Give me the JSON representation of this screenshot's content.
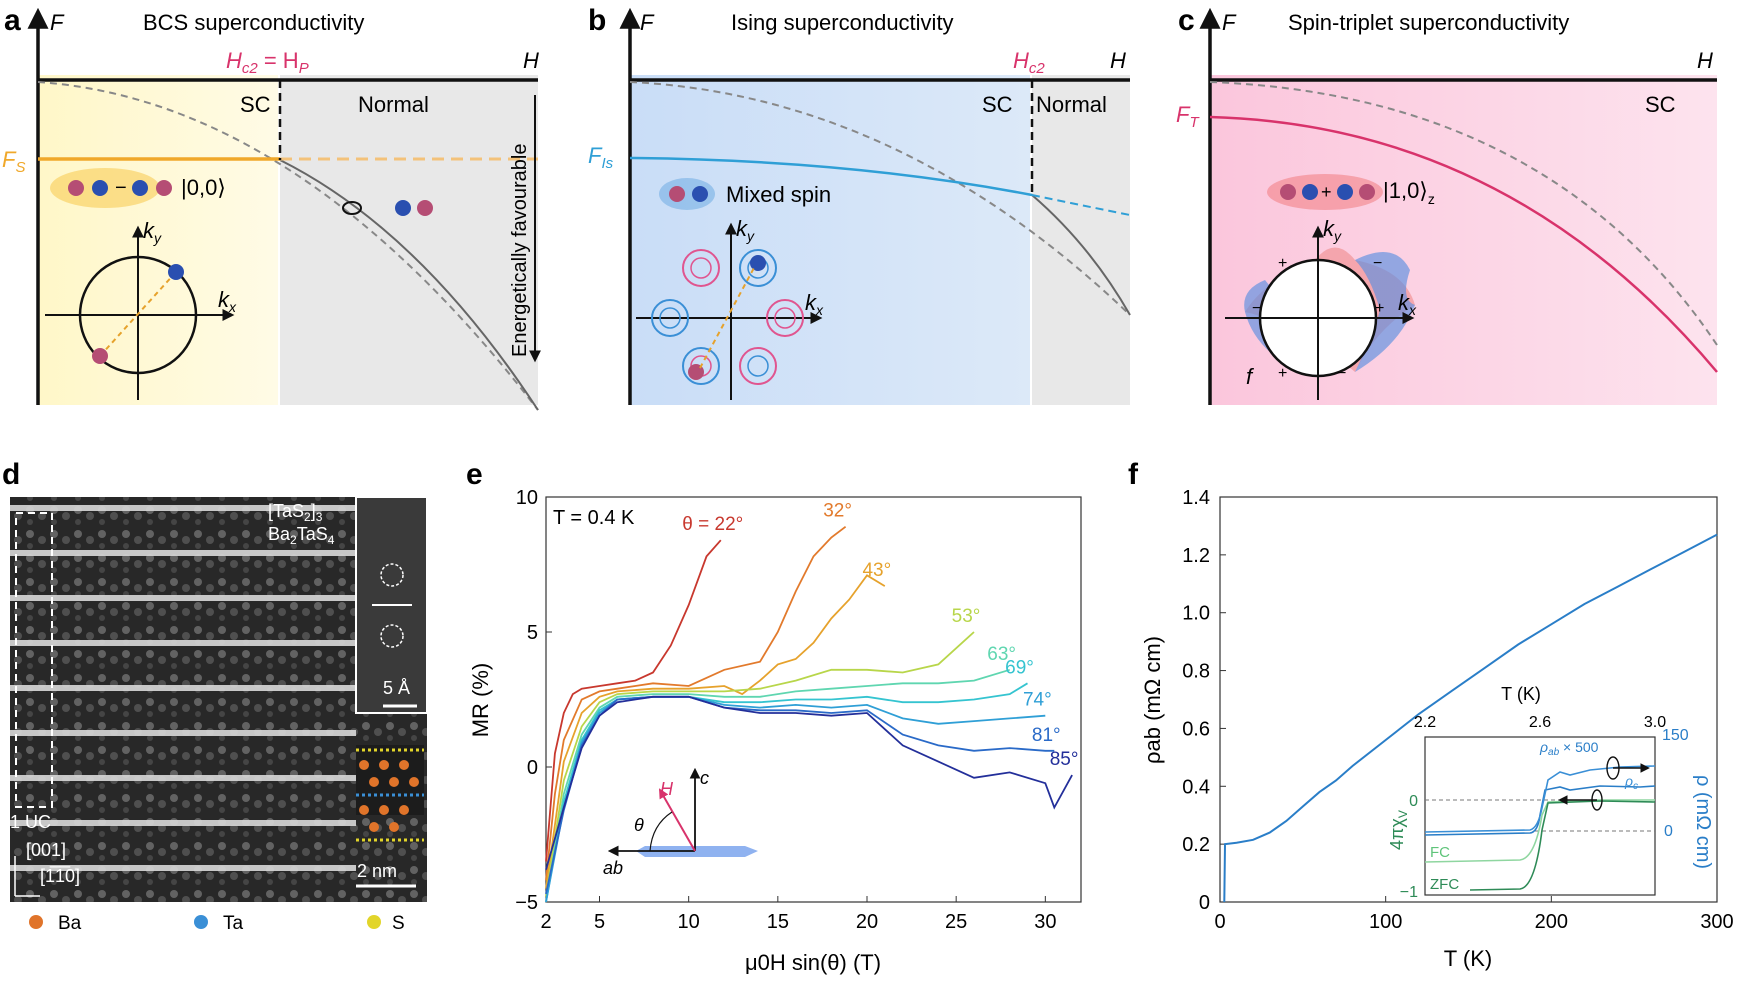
{
  "panel_a": {
    "letter": "a",
    "title": "BCS superconductivity",
    "axis_f": "F",
    "axis_h": "H",
    "hc2_label": "H",
    "hc2_sub": "c2",
    "hp_eq": " = H",
    "hp_sub": "P",
    "sc_label": "SC",
    "normal_label": "Normal",
    "fs_label": "F",
    "fs_sub": "S",
    "state_label": "|0,0⟩",
    "energetic_label": "Energetically favourable",
    "kx": "k",
    "kx_sub": "x",
    "ky": "k",
    "ky_sub": "y"
  },
  "panel_b": {
    "letter": "b",
    "title": "Ising superconductivity",
    "axis_f": "F",
    "axis_h": "H",
    "hc2_label": "H",
    "hc2_sub": "c2",
    "sc_label": "SC",
    "normal_label": "Normal",
    "fis_label": "F",
    "fis_sub": "Is",
    "mixed_label": "Mixed spin",
    "kx": "k",
    "kx_sub": "x",
    "ky": "k",
    "ky_sub": "y"
  },
  "panel_c": {
    "letter": "c",
    "title": "Spin-triplet superconductivity",
    "axis_f": "F",
    "axis_h": "H",
    "sc_label": "SC",
    "ft_label": "F",
    "ft_sub": "T",
    "state_label": "|1,0⟩",
    "state_sub": "z",
    "f_label": "f",
    "plus": "+",
    "minus": "−",
    "kx": "k",
    "kx_sub": "x",
    "ky": "k",
    "ky_sub": "y"
  },
  "panel_d": {
    "letter": "d",
    "layer1": "[TaS",
    "layer1_sub": "2",
    "layer1_end": "]",
    "layer1_sub2": "3",
    "layer2": "Ba",
    "layer2_sub": "2",
    "layer2_mid": "TaS",
    "layer2_sub2": "4",
    "uc_label": "1 UC",
    "dir1": "[001]",
    "dir2": "[1̅1̅0]",
    "scale_small": "5 Å",
    "scale_big": "2 nm",
    "legend": [
      {
        "name": "Ba",
        "color": "#e0742a"
      },
      {
        "name": "Ta",
        "color": "#3a8fd6"
      },
      {
        "name": "S",
        "color": "#e2d52a"
      }
    ]
  },
  "panel_e": {
    "letter": "e",
    "temp_label": "T = 0.4 K",
    "h_label": "H",
    "c_label": "c",
    "ab_label": "ab",
    "theta_label": "θ"
  },
  "panel_f": {
    "letter": "f",
    "inset_t_label": "T (K)",
    "inset_ticks_x": [
      "2.2",
      "2.6",
      "3.0"
    ],
    "inset_right_ticks": [
      "150",
      "0"
    ],
    "inset_left_ticks": [
      "0",
      "−1"
    ],
    "inset_left_label": "4πχ",
    "inset_left_sub": "V",
    "inset_right_label": "ρ (mΩ cm)",
    "rho_ab_label": "ρ",
    "rho_ab_sub": "ab",
    "rho_ab_mult": " × 500",
    "rho_c_label": "ρ",
    "rho_c_sub": "c",
    "fc_label": "FC",
    "zfc_label": "ZFC"
  },
  "chart_data": [
    {
      "id": "e",
      "type": "line",
      "xlabel": "μ0H sin(θ) (T)",
      "ylabel": "MR (%)",
      "xlim": [
        2,
        32
      ],
      "ylim": [
        -5,
        10
      ],
      "x_ticks": [
        2,
        5,
        10,
        15,
        20,
        25,
        30
      ],
      "y_ticks": [
        -5,
        0,
        5,
        10
      ],
      "series": [
        {
          "name": "θ = 22°",
          "color": "#c8382e",
          "x": [
            2,
            2.5,
            3,
            3.5,
            4,
            5,
            6,
            7,
            8,
            9,
            10,
            11,
            11.8
          ],
          "y": [
            -3.5,
            0.5,
            2.0,
            2.7,
            2.9,
            3.0,
            3.1,
            3.2,
            3.5,
            4.5,
            6.0,
            7.8,
            8.4
          ]
        },
        {
          "name": "32°",
          "color": "#e27a2c",
          "x": [
            2,
            2.5,
            3,
            4,
            5,
            6,
            7,
            8,
            10,
            12,
            14,
            15,
            16,
            17,
            18,
            18.8
          ],
          "y": [
            -4.2,
            -1.0,
            1.0,
            2.5,
            2.8,
            2.9,
            3.0,
            3.1,
            3.0,
            3.6,
            3.9,
            5.0,
            6.5,
            7.8,
            8.5,
            8.9
          ]
        },
        {
          "name": "43°",
          "color": "#e6a22c",
          "x": [
            2,
            3,
            4,
            5,
            6,
            8,
            10,
            12,
            13,
            14,
            15,
            16,
            17,
            18,
            19,
            20,
            21
          ],
          "y": [
            -4.5,
            0.2,
            2.0,
            2.6,
            2.8,
            2.9,
            2.9,
            3.0,
            2.7,
            3.2,
            3.8,
            4.0,
            4.6,
            5.5,
            6.2,
            7.1,
            6.7
          ]
        },
        {
          "name": "53°",
          "color": "#b8d64a",
          "x": [
            2,
            3,
            4,
            5,
            6,
            8,
            10,
            12,
            14,
            16,
            18,
            20,
            22,
            24,
            26
          ],
          "y": [
            -4.8,
            -0.5,
            1.5,
            2.4,
            2.7,
            2.8,
            2.8,
            2.8,
            2.9,
            3.2,
            3.6,
            3.6,
            3.5,
            3.8,
            5.0
          ]
        },
        {
          "name": "63°",
          "color": "#5fd6b0",
          "x": [
            2,
            3,
            4,
            5,
            6,
            8,
            10,
            12,
            14,
            16,
            18,
            20,
            22,
            24,
            26,
            28
          ],
          "y": [
            -5,
            -1.0,
            1.2,
            2.2,
            2.6,
            2.7,
            2.7,
            2.6,
            2.6,
            2.8,
            2.9,
            3.0,
            3.1,
            3.1,
            3.2,
            3.6
          ]
        },
        {
          "name": "69°",
          "color": "#35c4d0",
          "x": [
            2,
            3,
            4,
            5,
            6,
            8,
            10,
            12,
            14,
            16,
            18,
            20,
            22,
            24,
            26,
            28,
            29
          ],
          "y": [
            -5,
            -1.3,
            1.0,
            2.1,
            2.5,
            2.6,
            2.6,
            2.4,
            2.4,
            2.5,
            2.5,
            2.6,
            2.4,
            2.4,
            2.5,
            2.7,
            3.1
          ]
        },
        {
          "name": "74°",
          "color": "#2f9fd6",
          "x": [
            2,
            3,
            4,
            5,
            6,
            8,
            10,
            12,
            14,
            16,
            18,
            20,
            22,
            24,
            26,
            28,
            30
          ],
          "y": [
            -5,
            -1.5,
            0.9,
            2.0,
            2.5,
            2.6,
            2.6,
            2.3,
            2.2,
            2.3,
            2.2,
            2.3,
            1.8,
            1.6,
            1.7,
            1.8,
            1.9
          ]
        },
        {
          "name": "81°",
          "color": "#2a6ac8",
          "x": [
            2,
            3,
            4,
            5,
            6,
            8,
            10,
            12,
            14,
            16,
            18,
            20,
            22,
            24,
            26,
            28,
            30,
            30.5
          ],
          "y": [
            -4.7,
            -1.6,
            0.8,
            1.9,
            2.5,
            2.6,
            2.6,
            2.2,
            2.1,
            2.1,
            2.0,
            2.1,
            1.2,
            0.8,
            0.6,
            0.7,
            0.6,
            0.6
          ]
        },
        {
          "name": "85°",
          "color": "#232f9a",
          "x": [
            2,
            3,
            4,
            5,
            6,
            8,
            10,
            12,
            14,
            16,
            18,
            20,
            22,
            24,
            26,
            28,
            30,
            30.5,
            31.5
          ],
          "y": [
            -3.8,
            -1.5,
            0.7,
            1.9,
            2.4,
            2.6,
            2.6,
            2.2,
            2.0,
            2.0,
            1.9,
            2.0,
            0.8,
            0.2,
            -0.4,
            -0.2,
            -0.6,
            -1.5,
            -0.3
          ]
        }
      ]
    },
    {
      "id": "f",
      "type": "line",
      "xlabel": "T (K)",
      "ylabel": "ρab (mΩ cm)",
      "xlim": [
        0,
        300
      ],
      "ylim": [
        0,
        1.4
      ],
      "x_ticks": [
        0,
        100,
        200,
        300
      ],
      "y_ticks": [
        0,
        0.2,
        0.4,
        0.6,
        0.8,
        1.0,
        1.2,
        1.4
      ],
      "series": [
        {
          "name": "",
          "color": "#2a7ec8",
          "x": [
            2.6,
            3,
            10,
            20,
            30,
            40,
            50,
            60,
            70,
            80,
            100,
            120,
            140,
            160,
            180,
            200,
            220,
            240,
            260,
            280,
            300
          ],
          "y": [
            0.0,
            0.2,
            0.205,
            0.215,
            0.24,
            0.28,
            0.33,
            0.38,
            0.42,
            0.47,
            0.56,
            0.65,
            0.73,
            0.81,
            0.89,
            0.96,
            1.03,
            1.09,
            1.15,
            1.21,
            1.27
          ]
        }
      ]
    }
  ]
}
